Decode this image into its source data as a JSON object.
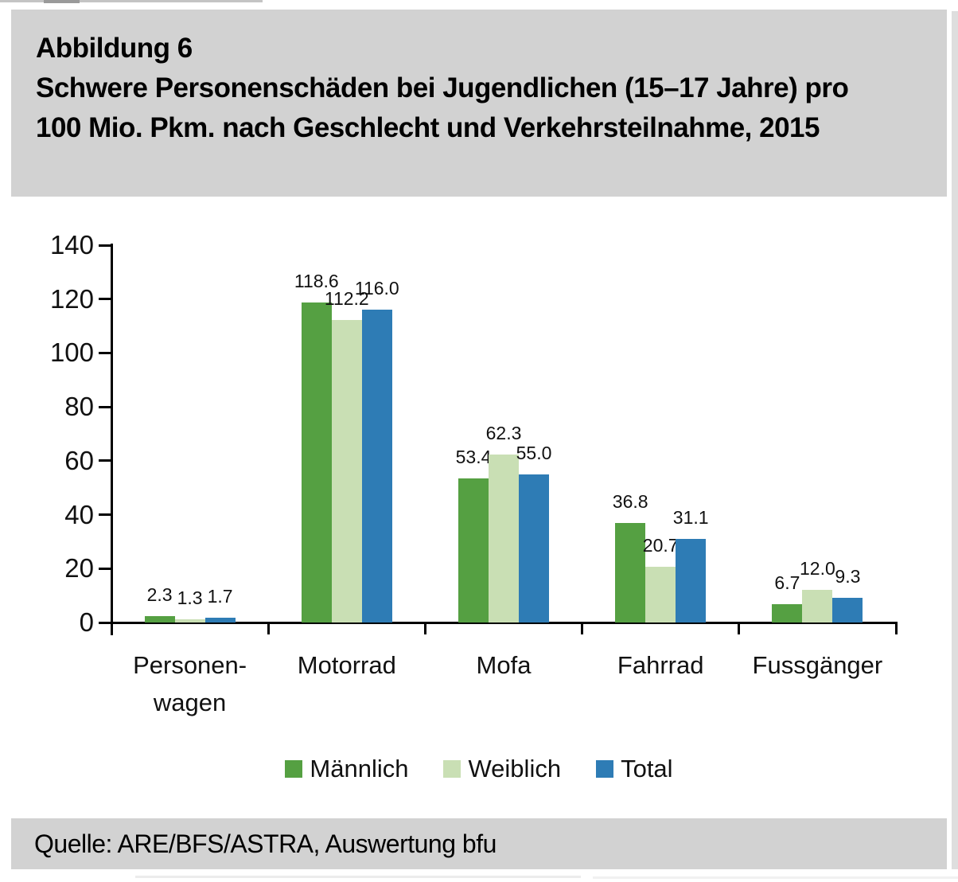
{
  "figure": {
    "label": "Abbildung 6",
    "title_line1": "Schwere Personenschäden bei Jugendlichen (15–17 Jahre) pro",
    "title_line2": "100 Mio. Pkm. nach Geschlecht und Verkehrsteilnahme, 2015"
  },
  "source_line": "Quelle: ARE/BFS/ASTRA, Auswertung bfu",
  "chart_data": {
    "type": "bar",
    "title": "Abbildung 6 — Schwere Personenschäden bei Jugendlichen (15–17 Jahre) pro 100 Mio. Pkm. nach Geschlecht und Verkehrsteilnahme, 2015",
    "categories": [
      "Personenwagen",
      "Motorrad",
      "Mofa",
      "Fahrrad",
      "Fussgänger"
    ],
    "category_display": [
      [
        "Personen-",
        "wagen"
      ],
      [
        "Motorrad"
      ],
      [
        "Mofa"
      ],
      [
        "Fahrrad"
      ],
      [
        "Fussgänger"
      ]
    ],
    "series": [
      {
        "name": "Männlich",
        "color": "#55A042",
        "values": [
          2.3,
          118.6,
          53.4,
          36.8,
          6.7
        ]
      },
      {
        "name": "Weiblich",
        "color": "#C9DFB4",
        "values": [
          1.3,
          112.2,
          62.3,
          20.7,
          12.0
        ]
      },
      {
        "name": "Total",
        "color": "#2E7CB5",
        "values": [
          1.7,
          116.0,
          55.0,
          31.1,
          9.3
        ]
      }
    ],
    "xlabel": "",
    "ylabel": "",
    "ylim": [
      0,
      140
    ],
    "yticks": [
      0,
      20,
      40,
      60,
      80,
      100,
      120,
      140
    ],
    "grid": false,
    "legend_position": "bottom",
    "value_labels": true,
    "value_label_decimals": 1
  },
  "colors": {
    "band_gray": "#d2d2d2",
    "axis": "#000000",
    "text": "#111111"
  }
}
